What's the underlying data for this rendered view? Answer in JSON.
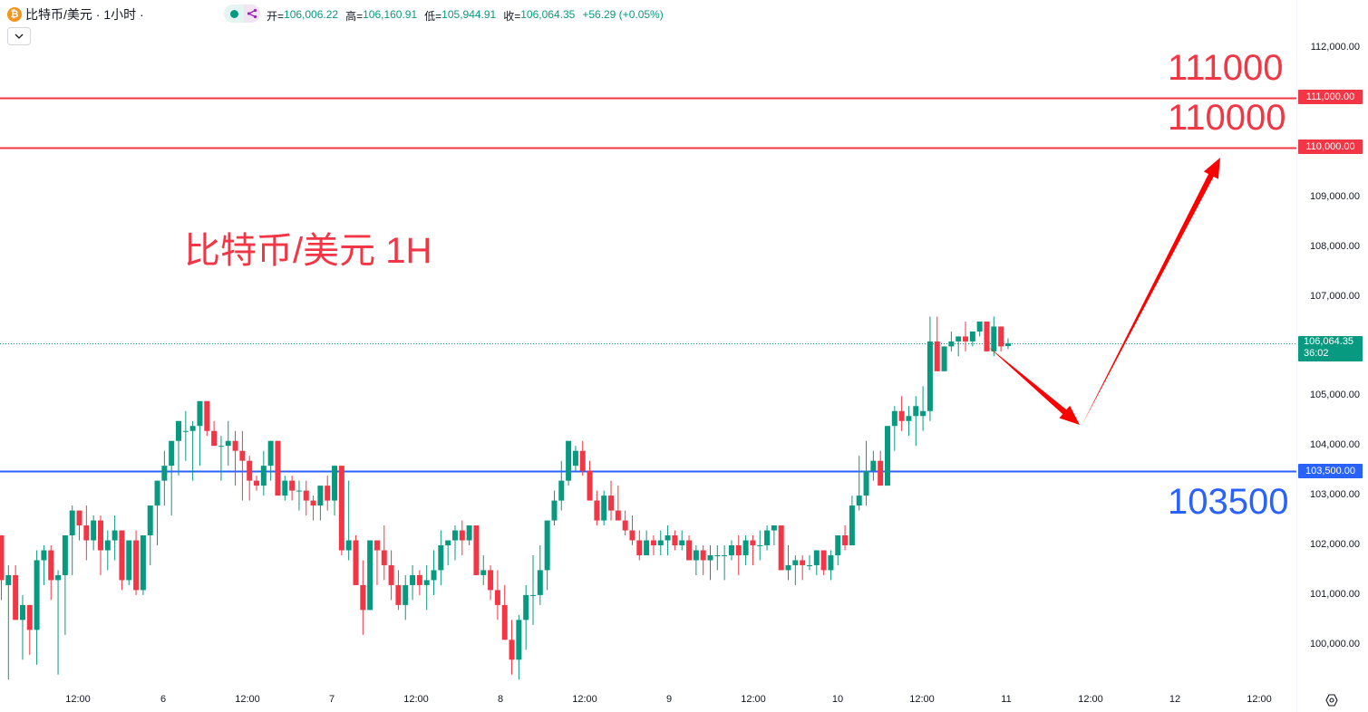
{
  "header": {
    "symbol_icon": "bitcoin-icon",
    "symbol_title": "比特币/美元 · 1小时 ·",
    "ohlc": [
      {
        "label": "开=",
        "value": "106,006.22"
      },
      {
        "label": "高=",
        "value": "106,160.91"
      },
      {
        "label": "低=",
        "value": "105,944.91"
      },
      {
        "label": "收=",
        "value": "106,064.35"
      }
    ],
    "change": "+56.29 (+0.05%)",
    "collapse_icon": "chevron-down-icon"
  },
  "colors": {
    "up": "#089981",
    "down": "#f23645",
    "resistance": "#f23645",
    "support": "#2962ff",
    "arrow": "#ff0000",
    "annotation_text": "#f23645",
    "support_text": "#2962ff"
  },
  "annotations": {
    "title": "比特币/美元 1H",
    "label_111000": "111000",
    "label_110000": "110000",
    "label_103500": "103500"
  },
  "price_axis": {
    "ticks": [
      "112,000.00",
      "109,000.00",
      "108,000.00",
      "107,000.00",
      "105,000.00",
      "104,000.00",
      "103,000.00",
      "102,000.00",
      "101,000.00",
      "100,000.00"
    ],
    "tags": {
      "r1": "111,000.00",
      "r2": "110,000.00",
      "s1": "103,500.00",
      "last": "106,064.35",
      "countdown": "36:02"
    }
  },
  "time_axis": {
    "labels": [
      "12:00",
      "6",
      "12:00",
      "7",
      "12:00",
      "8",
      "12:00",
      "9",
      "12:00",
      "10",
      "12:00",
      "11",
      "12:00",
      "12",
      "12:00"
    ]
  },
  "chart_data": {
    "type": "candlestick",
    "title": "比特币/美元 · 1小时",
    "xlabel": "",
    "ylabel": "USD",
    "ylim": [
      99300,
      112500
    ],
    "y_ticks": [
      100000,
      101000,
      102000,
      103000,
      104000,
      105000,
      106000,
      107000,
      108000,
      109000,
      110000,
      111000,
      112000
    ],
    "x_ticks": [
      "12:00",
      "6",
      "12:00",
      "7",
      "12:00",
      "8",
      "12:00",
      "9",
      "12:00",
      "10",
      "12:00",
      "11",
      "12:00",
      "12",
      "12:00"
    ],
    "horizontal_lines": [
      {
        "price": 111000,
        "color": "#f23645",
        "label": "111000"
      },
      {
        "price": 110000,
        "color": "#f23645",
        "label": "110000"
      },
      {
        "price": 103500,
        "color": "#2962ff",
        "label": "103500"
      },
      {
        "price": 106064.35,
        "color": "#089981",
        "style": "dotted",
        "label": "last price"
      }
    ],
    "projection_arrows": [
      {
        "from": [
          106000,
          "10 18:00"
        ],
        "to": [
          104800,
          "11 10:00"
        ],
        "color": "#ff0000"
      },
      {
        "from": [
          104800,
          "11 10:00"
        ],
        "to": [
          109800,
          "12 15:00"
        ],
        "color": "#ff0000"
      }
    ],
    "last": {
      "open": 106006.22,
      "high": 106160.91,
      "low": 105944.91,
      "close": 106064.35,
      "change": 56.29,
      "change_pct": 0.05
    },
    "candles": [
      [
        102200,
        102200,
        100900,
        101300
      ],
      [
        101200,
        101600,
        99300,
        101400
      ],
      [
        101400,
        101600,
        100500,
        100500
      ],
      [
        100500,
        101000,
        99700,
        100800
      ],
      [
        100800,
        100800,
        99800,
        100300
      ],
      [
        100300,
        101900,
        99600,
        101700
      ],
      [
        101700,
        102000,
        101200,
        101900
      ],
      [
        101900,
        102000,
        100900,
        101300
      ],
      [
        101300,
        101500,
        99400,
        101400
      ],
      [
        101400,
        102200,
        100200,
        102200
      ],
      [
        102200,
        102800,
        101400,
        102700
      ],
      [
        102700,
        102700,
        102100,
        102400
      ],
      [
        102400,
        102800,
        101700,
        102100
      ],
      [
        102100,
        102600,
        101900,
        102500
      ],
      [
        102500,
        102600,
        101400,
        101900
      ],
      [
        101900,
        102300,
        101500,
        102100
      ],
      [
        102100,
        102600,
        101700,
        102300
      ],
      [
        102300,
        102300,
        101100,
        101300
      ],
      [
        101300,
        102000,
        101200,
        102100
      ],
      [
        102100,
        102300,
        101000,
        101100
      ],
      [
        101100,
        102200,
        101000,
        102200
      ],
      [
        102200,
        102300,
        101600,
        102800
      ],
      [
        102800,
        103300,
        102000,
        103300
      ],
      [
        103300,
        103900,
        102800,
        103600
      ],
      [
        103600,
        104000,
        102600,
        104100
      ],
      [
        104100,
        104500,
        103400,
        104500
      ],
      [
        104300,
        104700,
        103700,
        104300
      ],
      [
        104300,
        104500,
        103300,
        104400
      ],
      [
        104400,
        104700,
        103600,
        104900
      ],
      [
        104900,
        104900,
        104200,
        104300
      ],
      [
        104300,
        104500,
        104000,
        104000
      ],
      [
        104000,
        104200,
        103300,
        104000
      ],
      [
        104000,
        104500,
        103600,
        104100
      ],
      [
        104100,
        104300,
        103200,
        103900
      ],
      [
        103900,
        104300,
        102900,
        103700
      ],
      [
        103700,
        103800,
        102900,
        103300
      ],
      [
        103300,
        103400,
        103100,
        103200
      ],
      [
        103200,
        103900,
        103000,
        103600
      ],
      [
        103600,
        104100,
        103300,
        104100
      ],
      [
        104100,
        104100,
        103000,
        103000
      ],
      [
        103000,
        103400,
        102900,
        103300
      ],
      [
        103300,
        103400,
        102900,
        103100
      ],
      [
        103100,
        103300,
        102700,
        103100
      ],
      [
        103100,
        103300,
        102600,
        102900
      ],
      [
        102900,
        103000,
        102500,
        102800
      ],
      [
        102800,
        103200,
        102500,
        103200
      ],
      [
        103200,
        103400,
        102700,
        102900
      ],
      [
        102900,
        103600,
        102600,
        103600
      ],
      [
        103600,
        103600,
        101800,
        101900
      ],
      [
        101900,
        103300,
        101700,
        102100
      ],
      [
        102100,
        102200,
        101400,
        101200
      ],
      [
        101200,
        101700,
        100200,
        100700
      ],
      [
        100700,
        102100,
        100700,
        102100
      ],
      [
        102100,
        102100,
        101200,
        101900
      ],
      [
        101900,
        102400,
        101300,
        101600
      ],
      [
        101600,
        101900,
        100900,
        101200
      ],
      [
        101200,
        101500,
        100700,
        100800
      ],
      [
        100800,
        101400,
        100500,
        101200
      ],
      [
        101200,
        101600,
        100900,
        101400
      ],
      [
        101400,
        101500,
        101000,
        101200
      ],
      [
        101200,
        101600,
        100700,
        101300
      ],
      [
        101300,
        101900,
        101000,
        101500
      ],
      [
        101500,
        102300,
        101200,
        102000
      ],
      [
        102000,
        102000,
        101600,
        102100
      ],
      [
        102100,
        102400,
        101700,
        102300
      ],
      [
        102300,
        102500,
        101800,
        102100
      ],
      [
        102100,
        102400,
        102000,
        102400
      ],
      [
        102400,
        102400,
        101900,
        101400
      ],
      [
        101400,
        101800,
        101200,
        101500
      ],
      [
        101500,
        101600,
        100900,
        101100
      ],
      [
        101100,
        101500,
        100500,
        100800
      ],
      [
        100800,
        101200,
        100300,
        100100
      ],
      [
        100100,
        100500,
        99400,
        99700
      ],
      [
        99700,
        100600,
        99300,
        100500
      ],
      [
        100500,
        101200,
        99900,
        101000
      ],
      [
        101000,
        101800,
        100400,
        101000
      ],
      [
        101000,
        102000,
        100800,
        101500
      ],
      [
        101500,
        102300,
        101100,
        102500
      ],
      [
        102500,
        103100,
        102400,
        102900
      ],
      [
        102900,
        103700,
        102700,
        103300
      ],
      [
        103300,
        103900,
        103200,
        104100
      ],
      [
        103600,
        104000,
        103500,
        103900
      ],
      [
        103900,
        104100,
        103400,
        103500
      ],
      [
        103500,
        103700,
        102900,
        102900
      ],
      [
        102900,
        103100,
        102400,
        102500
      ],
      [
        102500,
        103100,
        102400,
        103000
      ],
      [
        103000,
        103300,
        102500,
        102700
      ],
      [
        102700,
        103200,
        102500,
        102500
      ],
      [
        102500,
        102700,
        102200,
        102300
      ],
      [
        102300,
        102600,
        102000,
        102100
      ],
      [
        102100,
        102300,
        101700,
        101800
      ],
      [
        101800,
        102300,
        101800,
        102100
      ],
      [
        102100,
        102200,
        101800,
        102000
      ],
      [
        102000,
        102300,
        101800,
        102100
      ],
      [
        102100,
        102400,
        101800,
        102200
      ],
      [
        102200,
        102300,
        101900,
        102000
      ],
      [
        102000,
        102300,
        101900,
        102100
      ],
      [
        102100,
        102200,
        101700,
        101700
      ],
      [
        101700,
        102000,
        101400,
        101900
      ],
      [
        101900,
        102000,
        101400,
        101700
      ],
      [
        101700,
        102000,
        101300,
        101800
      ],
      [
        101800,
        102000,
        101500,
        101800
      ],
      [
        101800,
        102000,
        101300,
        101800
      ],
      [
        101800,
        102100,
        101700,
        102000
      ],
      [
        102000,
        102200,
        101400,
        101800
      ],
      [
        101800,
        102200,
        101600,
        102100
      ],
      [
        102100,
        102200,
        101600,
        102000
      ],
      [
        102000,
        102300,
        101700,
        102000
      ],
      [
        102000,
        102400,
        101900,
        102300
      ],
      [
        102300,
        102400,
        102000,
        102400
      ],
      [
        102400,
        102400,
        101800,
        101500
      ],
      [
        101500,
        102000,
        101300,
        101600
      ],
      [
        101600,
        101800,
        101200,
        101700
      ],
      [
        101700,
        101800,
        101300,
        101600
      ],
      [
        101600,
        101800,
        101500,
        101600
      ],
      [
        101600,
        101900,
        101400,
        101900
      ],
      [
        101900,
        101900,
        101400,
        101500
      ],
      [
        101500,
        101900,
        101300,
        101800
      ],
      [
        101800,
        102200,
        101600,
        102200
      ],
      [
        102200,
        102400,
        101900,
        102000
      ],
      [
        102000,
        103000,
        102000,
        102800
      ],
      [
        102800,
        103800,
        102700,
        103000
      ],
      [
        103000,
        104100,
        102800,
        103500
      ],
      [
        103500,
        103900,
        103300,
        103700
      ],
      [
        103700,
        103900,
        103300,
        103200
      ],
      [
        103200,
        104400,
        103500,
        104400
      ],
      [
        104400,
        104800,
        103900,
        104700
      ],
      [
        104700,
        105000,
        104300,
        104500
      ],
      [
        104500,
        104800,
        104200,
        104600
      ],
      [
        104600,
        105000,
        104000,
        104800
      ],
      [
        104600,
        105200,
        104300,
        104700
      ],
      [
        104700,
        106600,
        104500,
        106100
      ],
      [
        106100,
        106600,
        105700,
        105500
      ],
      [
        105500,
        106000,
        105600,
        106000
      ],
      [
        106000,
        106300,
        105900,
        106100
      ],
      [
        106100,
        106200,
        105800,
        106200
      ],
      [
        106200,
        106500,
        105900,
        106100
      ],
      [
        106100,
        106300,
        106000,
        106300
      ],
      [
        106300,
        106500,
        106200,
        106500
      ],
      [
        106500,
        106500,
        105900,
        105900
      ],
      [
        105900,
        106600,
        105800,
        106400
      ],
      [
        106400,
        106400,
        105900,
        106000
      ],
      [
        106006,
        106161,
        105945,
        106064
      ]
    ]
  }
}
